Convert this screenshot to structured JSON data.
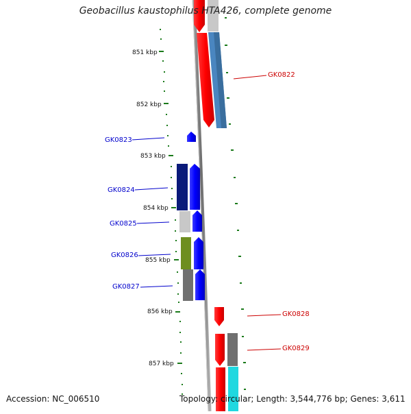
{
  "title": "Geobacillus kaustophilus HTA426, complete genome",
  "accession": "Accession: NC_006510",
  "topology": "Topology: circular; Length: 3,544,776 bp; Genes: 3,611",
  "ruler_labels": [
    "851 kbp",
    "852 kbp",
    "853 kbp",
    "854 kbp",
    "855 kbp",
    "856 kbp",
    "857 kbp"
  ],
  "gene_labels": {
    "gk0822": "GK0822",
    "gk0823": "GK0823",
    "gk0824": "GK0824",
    "gk0825": "GK0825",
    "gk0826": "GK0826",
    "gk0827": "GK0827",
    "gk0828": "GK0828",
    "gk0829": "GK0829"
  },
  "colors": {
    "forward_strand": "#ff0000",
    "reverse_strand": "#0000ff",
    "forward_label": "#cc0000",
    "reverse_label": "#0000cc",
    "tick": "#1a7a1a",
    "backbone": "#8a8a8a",
    "cog_navy": "#0a1a7a",
    "cog_steelblue": "#4a86c0",
    "cog_olive": "#6e8e20",
    "cog_gray": "#707070",
    "cog_lightgray": "#c8c8c8",
    "cog_cyan": "#20d8e0"
  }
}
